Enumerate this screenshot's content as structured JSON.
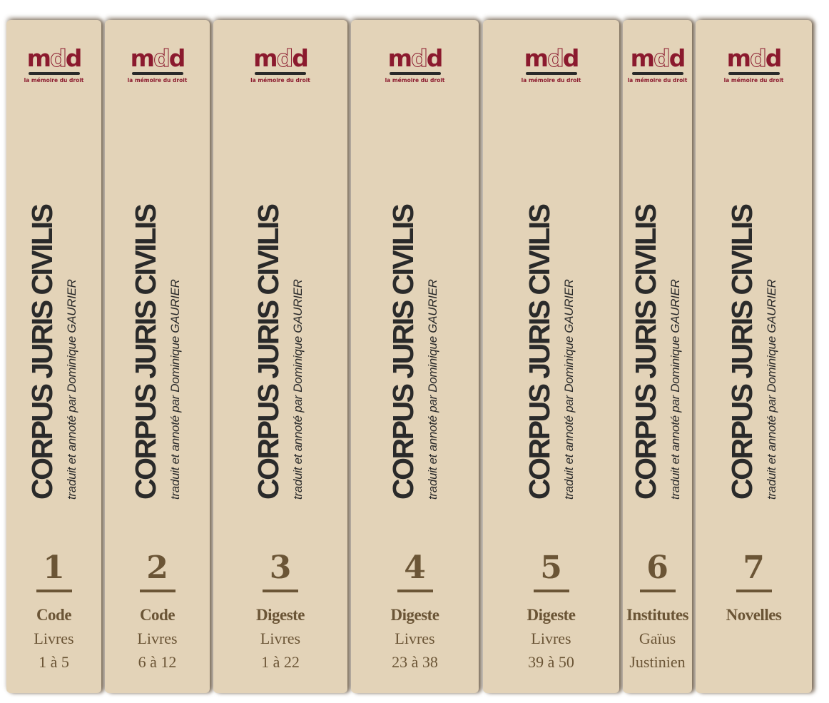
{
  "colors": {
    "spine": "#e3d3b8",
    "text_brown": "#6b5536",
    "logo_red": "#8b1a2e",
    "title_dark": "#2a2a2a"
  },
  "logo": {
    "mark": "mdd",
    "tagline": "la mémoire du droit"
  },
  "title": "CORPUS JURIS CIVILIS",
  "subtitle": "traduit et annoté par Dominique GAURIER",
  "volumes": [
    {
      "number": "1",
      "label": "Code",
      "lines": [
        "Livres",
        "1 à 5"
      ]
    },
    {
      "number": "2",
      "label": "Code",
      "lines": [
        "Livres",
        "6 à 12"
      ]
    },
    {
      "number": "3",
      "label": "Digeste",
      "lines": [
        "Livres",
        "1 à 22"
      ]
    },
    {
      "number": "4",
      "label": "Digeste",
      "lines": [
        "Livres",
        "23 à 38"
      ]
    },
    {
      "number": "5",
      "label": "Digeste",
      "lines": [
        "Livres",
        "39 à 50"
      ]
    },
    {
      "number": "6",
      "label": "Institutes",
      "lines": [
        "Gaïus",
        "Justinien"
      ]
    },
    {
      "number": "7",
      "label": "Novelles",
      "lines": []
    }
  ]
}
